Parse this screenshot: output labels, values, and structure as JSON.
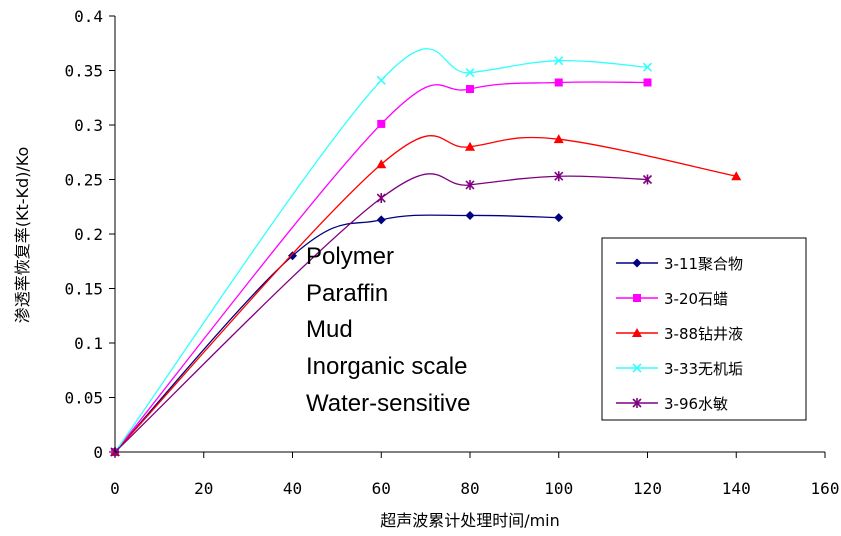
{
  "chart_data": {
    "type": "line",
    "title": "",
    "xlabel": "超声波累计处理时间/min",
    "ylabel": "渗透率恢复率(Kt-Kd)/Ko",
    "xlim": [
      0,
      160
    ],
    "ylim": [
      0,
      0.4
    ],
    "x_ticks": [
      "0",
      "20",
      "40",
      "60",
      "80",
      "100",
      "120",
      "140",
      "160"
    ],
    "y_ticks": [
      "0",
      "0.05",
      "0.1",
      "0.15",
      "0.2",
      "0.25",
      "0.3",
      "0.35",
      "0.4"
    ],
    "grid": false,
    "legend_position": "right",
    "series": [
      {
        "name": "3-11聚合物",
        "color": "#000080",
        "marker": "diamond",
        "x": [
          0,
          40,
          60,
          80,
          100
        ],
        "y": [
          0,
          0.18,
          0.213,
          0.217,
          0.215
        ]
      },
      {
        "name": "3-20石蜡",
        "color": "#ff00ff",
        "marker": "square",
        "x": [
          0,
          60,
          80,
          100,
          120
        ],
        "y": [
          0,
          0.301,
          0.333,
          0.339,
          0.339
        ]
      },
      {
        "name": "3-88钻井液",
        "color": "#ff0000",
        "marker": "triangle",
        "x": [
          0,
          60,
          80,
          100,
          140
        ],
        "y": [
          0,
          0.264,
          0.28,
          0.287,
          0.253
        ]
      },
      {
        "name": "3-33无机垢",
        "color": "#33ffff",
        "marker": "x",
        "x": [
          0,
          60,
          80,
          100,
          120
        ],
        "y": [
          0,
          0.341,
          0.348,
          0.359,
          0.353
        ]
      },
      {
        "name": "3-96水敏",
        "color": "#800080",
        "marker": "star",
        "x": [
          0,
          60,
          80,
          100,
          120
        ],
        "y": [
          0,
          0.233,
          0.245,
          0.253,
          0.25
        ]
      }
    ],
    "annotations": [
      "Polymer",
      "Paraffin",
      "Mud",
      "Inorganic scale",
      "Water-sensitive"
    ]
  }
}
